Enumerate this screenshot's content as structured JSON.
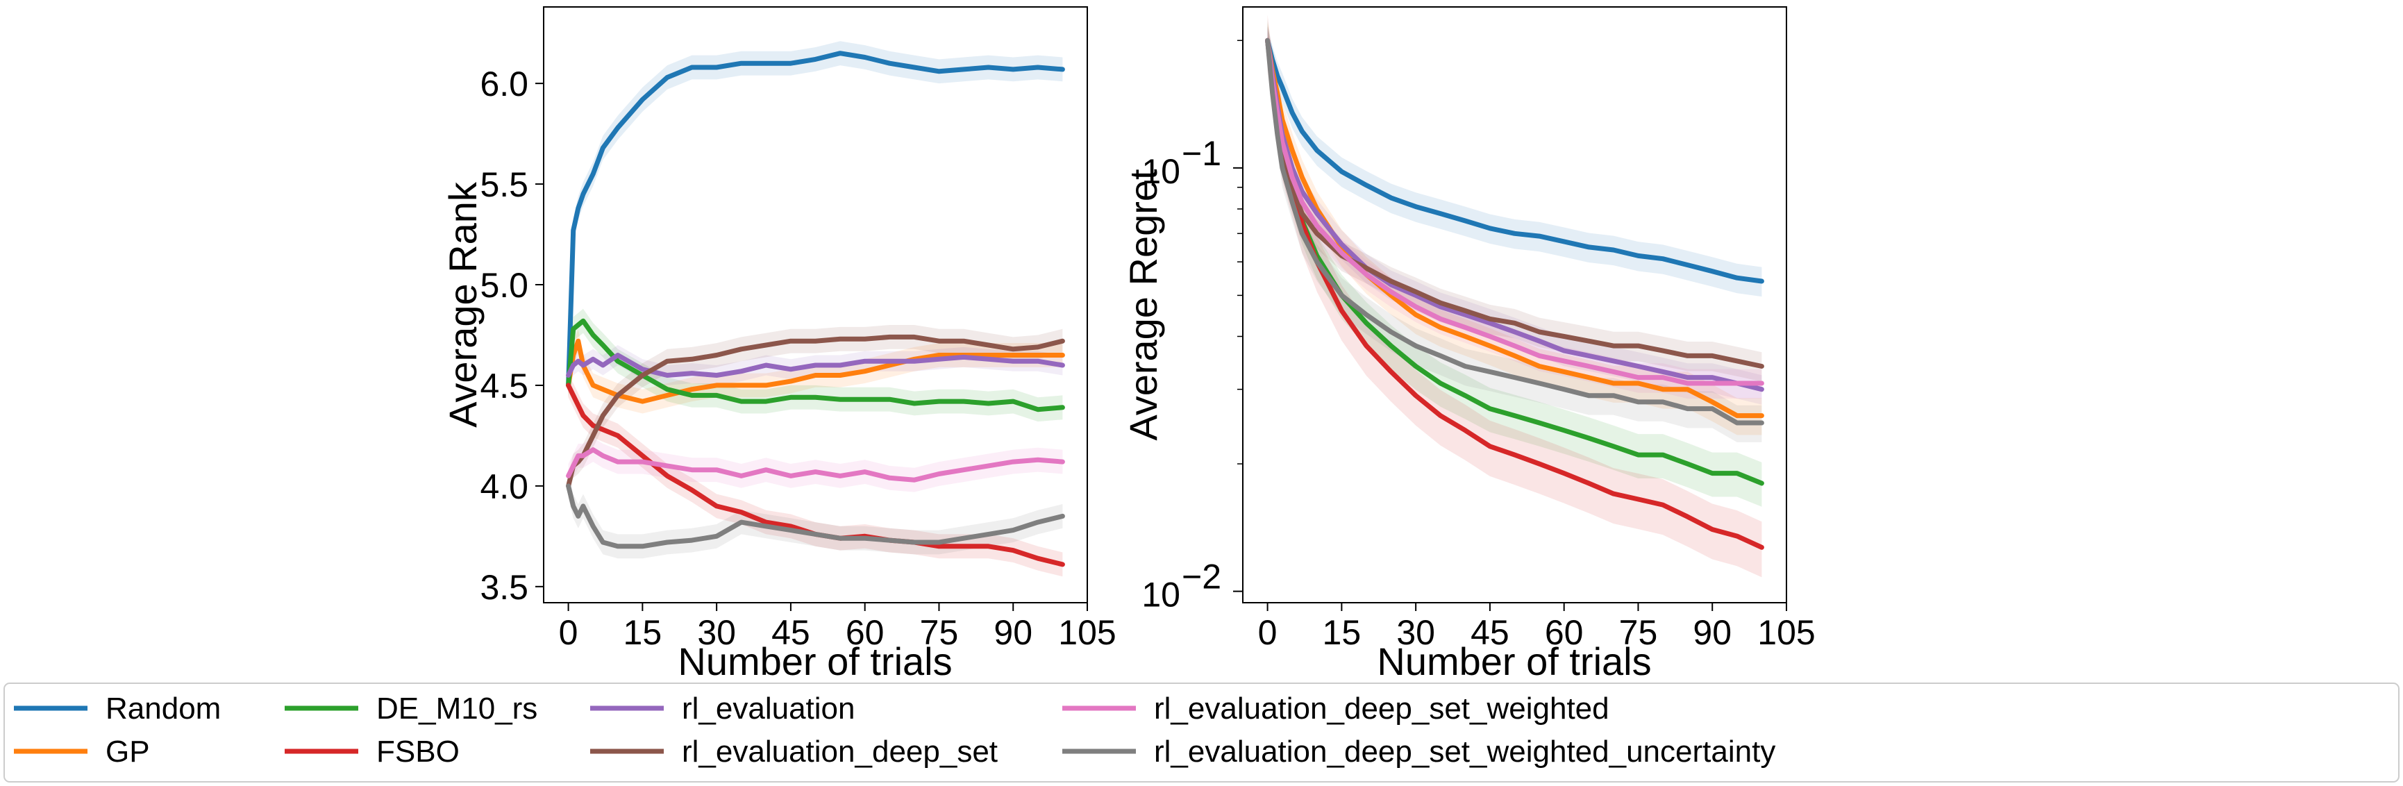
{
  "colors": {
    "Random": "#1f77b4",
    "GP": "#ff7f0e",
    "DE_M10_rs": "#2ca02c",
    "FSBO": "#d62728",
    "rl_evaluation": "#9467bd",
    "rl_evaluation_deep_set": "#8c564b",
    "rl_evaluation_deep_set_weighted": "#e377c2",
    "rl_evaluation_deep_set_weighted_uncertainty": "#7f7f7f"
  },
  "legend": {
    "entries": [
      "Random",
      "GP",
      "DE_M10_rs",
      "FSBO",
      "rl_evaluation",
      "rl_evaluation_deep_set",
      "rl_evaluation_deep_set_weighted",
      "rl_evaluation_deep_set_weighted_uncertainty"
    ],
    "placement": "bottom-center"
  },
  "chart_data": [
    {
      "type": "line",
      "xlabel": "Number of trials",
      "ylabel": "Average Rank",
      "xlim": [
        -5,
        105
      ],
      "ylim": [
        3.42,
        6.38
      ],
      "xticks": [
        0,
        15,
        30,
        45,
        60,
        75,
        90,
        105
      ],
      "yticks": [
        3.5,
        4.0,
        4.5,
        5.0,
        5.5,
        6.0
      ],
      "ytick_labels": [
        "3.5",
        "4.0",
        "4.5",
        "5.0",
        "5.5",
        "6.0"
      ],
      "grid": false,
      "series": [
        {
          "name": "Random",
          "x": [
            0,
            1,
            2,
            3,
            5,
            7,
            10,
            15,
            20,
            25,
            30,
            35,
            40,
            45,
            50,
            55,
            60,
            65,
            70,
            75,
            80,
            85,
            90,
            95,
            100
          ],
          "y": [
            4.5,
            5.27,
            5.38,
            5.45,
            5.55,
            5.68,
            5.78,
            5.92,
            6.03,
            6.08,
            6.08,
            6.1,
            6.1,
            6.1,
            6.12,
            6.15,
            6.13,
            6.1,
            6.08,
            6.06,
            6.07,
            6.08,
            6.07,
            6.08,
            6.07
          ],
          "band": 0.06
        },
        {
          "name": "GP",
          "x": [
            0,
            1,
            2,
            3,
            5,
            7,
            10,
            15,
            20,
            25,
            30,
            35,
            40,
            45,
            50,
            55,
            60,
            65,
            70,
            75,
            80,
            85,
            90,
            95,
            100
          ],
          "y": [
            4.5,
            4.65,
            4.72,
            4.6,
            4.5,
            4.48,
            4.45,
            4.42,
            4.45,
            4.48,
            4.5,
            4.5,
            4.5,
            4.52,
            4.55,
            4.55,
            4.57,
            4.6,
            4.63,
            4.65,
            4.65,
            4.65,
            4.65,
            4.65,
            4.65
          ],
          "band": 0.06
        },
        {
          "name": "DE_M10_rs",
          "x": [
            0,
            1,
            2,
            3,
            5,
            7,
            10,
            15,
            20,
            25,
            30,
            35,
            40,
            45,
            50,
            55,
            60,
            65,
            70,
            75,
            80,
            85,
            90,
            95,
            100
          ],
          "y": [
            4.5,
            4.78,
            4.8,
            4.82,
            4.75,
            4.7,
            4.62,
            4.55,
            4.48,
            4.45,
            4.45,
            4.42,
            4.42,
            4.44,
            4.44,
            4.43,
            4.43,
            4.43,
            4.41,
            4.42,
            4.42,
            4.41,
            4.42,
            4.38,
            4.39
          ],
          "band": 0.06
        },
        {
          "name": "FSBO",
          "x": [
            0,
            1,
            2,
            3,
            5,
            7,
            10,
            15,
            20,
            25,
            30,
            35,
            40,
            45,
            50,
            55,
            60,
            65,
            70,
            75,
            80,
            85,
            90,
            95,
            100
          ],
          "y": [
            4.5,
            4.45,
            4.4,
            4.35,
            4.3,
            4.28,
            4.25,
            4.15,
            4.05,
            3.98,
            3.9,
            3.87,
            3.82,
            3.8,
            3.76,
            3.74,
            3.75,
            3.73,
            3.72,
            3.7,
            3.7,
            3.7,
            3.68,
            3.64,
            3.61
          ],
          "band": 0.06
        },
        {
          "name": "rl_evaluation",
          "x": [
            0,
            1,
            2,
            3,
            5,
            7,
            10,
            15,
            20,
            25,
            30,
            35,
            40,
            45,
            50,
            55,
            60,
            65,
            70,
            75,
            80,
            85,
            90,
            95,
            100
          ],
          "y": [
            4.55,
            4.6,
            4.62,
            4.6,
            4.63,
            4.6,
            4.65,
            4.58,
            4.55,
            4.56,
            4.55,
            4.57,
            4.6,
            4.58,
            4.6,
            4.6,
            4.62,
            4.62,
            4.62,
            4.63,
            4.64,
            4.63,
            4.62,
            4.62,
            4.6
          ],
          "band": 0.05
        },
        {
          "name": "rl_evaluation_deep_set",
          "x": [
            0,
            1,
            2,
            3,
            5,
            7,
            10,
            15,
            20,
            25,
            30,
            35,
            40,
            45,
            50,
            55,
            60,
            65,
            70,
            75,
            80,
            85,
            90,
            95,
            100
          ],
          "y": [
            4.0,
            4.1,
            4.12,
            4.15,
            4.25,
            4.35,
            4.45,
            4.55,
            4.62,
            4.63,
            4.65,
            4.68,
            4.7,
            4.72,
            4.72,
            4.73,
            4.73,
            4.74,
            4.74,
            4.72,
            4.72,
            4.7,
            4.68,
            4.69,
            4.72
          ],
          "band": 0.06
        },
        {
          "name": "rl_evaluation_deep_set_weighted",
          "x": [
            0,
            1,
            2,
            3,
            5,
            7,
            10,
            15,
            20,
            25,
            30,
            35,
            40,
            45,
            50,
            55,
            60,
            65,
            70,
            75,
            80,
            85,
            90,
            95,
            100
          ],
          "y": [
            4.05,
            4.1,
            4.15,
            4.15,
            4.18,
            4.15,
            4.12,
            4.12,
            4.1,
            4.08,
            4.08,
            4.05,
            4.08,
            4.05,
            4.07,
            4.05,
            4.07,
            4.04,
            4.03,
            4.06,
            4.08,
            4.1,
            4.12,
            4.13,
            4.12
          ],
          "band": 0.06
        },
        {
          "name": "rl_evaluation_deep_set_weighted_uncertainty",
          "x": [
            0,
            1,
            2,
            3,
            5,
            7,
            10,
            15,
            20,
            25,
            30,
            35,
            40,
            45,
            50,
            55,
            60,
            65,
            70,
            75,
            80,
            85,
            90,
            95,
            100
          ],
          "y": [
            4.0,
            3.9,
            3.85,
            3.9,
            3.8,
            3.72,
            3.7,
            3.7,
            3.72,
            3.73,
            3.75,
            3.82,
            3.8,
            3.78,
            3.76,
            3.74,
            3.74,
            3.73,
            3.72,
            3.72,
            3.74,
            3.76,
            3.78,
            3.82,
            3.85
          ],
          "band": 0.06
        }
      ]
    },
    {
      "type": "line",
      "xlabel": "Number of trials",
      "ylabel": "Average Regret",
      "yscale": "log",
      "xlim": [
        -5,
        105
      ],
      "ylim": [
        0.0094,
        0.24
      ],
      "xticks": [
        0,
        15,
        30,
        45,
        60,
        75,
        90,
        105
      ],
      "yticks": [
        0.01,
        0.1
      ],
      "ytick_base": "10",
      "ytick_exponents": [
        "−2",
        "−1"
      ],
      "grid": false,
      "series": [
        {
          "name": "Random",
          "x": [
            0,
            1,
            2,
            3,
            5,
            7,
            10,
            15,
            20,
            25,
            30,
            35,
            40,
            45,
            50,
            55,
            60,
            65,
            70,
            75,
            80,
            85,
            90,
            95,
            100
          ],
          "y": [
            0.2,
            0.18,
            0.165,
            0.155,
            0.135,
            0.122,
            0.11,
            0.098,
            0.091,
            0.085,
            0.081,
            0.078,
            0.075,
            0.072,
            0.07,
            0.069,
            0.067,
            0.065,
            0.064,
            0.062,
            0.061,
            0.059,
            0.057,
            0.055,
            0.054
          ],
          "band": 0.08
        },
        {
          "name": "GP",
          "x": [
            0,
            1,
            2,
            3,
            5,
            7,
            10,
            15,
            20,
            25,
            30,
            35,
            40,
            45,
            50,
            55,
            60,
            65,
            70,
            75,
            80,
            85,
            90,
            95,
            100
          ],
          "y": [
            0.2,
            0.17,
            0.15,
            0.13,
            0.11,
            0.095,
            0.08,
            0.065,
            0.056,
            0.05,
            0.045,
            0.042,
            0.04,
            0.038,
            0.036,
            0.034,
            0.033,
            0.032,
            0.031,
            0.031,
            0.03,
            0.03,
            0.028,
            0.026,
            0.026
          ],
          "band": 0.1
        },
        {
          "name": "DE_M10_rs",
          "x": [
            0,
            1,
            2,
            3,
            5,
            7,
            10,
            15,
            20,
            25,
            30,
            35,
            40,
            45,
            50,
            55,
            60,
            65,
            70,
            75,
            80,
            85,
            90,
            95,
            100
          ],
          "y": [
            0.2,
            0.16,
            0.13,
            0.11,
            0.09,
            0.075,
            0.062,
            0.05,
            0.043,
            0.038,
            0.034,
            0.031,
            0.029,
            0.027,
            0.026,
            0.025,
            0.024,
            0.023,
            0.022,
            0.021,
            0.021,
            0.02,
            0.019,
            0.019,
            0.018
          ],
          "band": 0.12
        },
        {
          "name": "FSBO",
          "x": [
            0,
            1,
            2,
            3,
            5,
            7,
            10,
            15,
            20,
            25,
            30,
            35,
            40,
            45,
            50,
            55,
            60,
            65,
            70,
            75,
            80,
            85,
            90,
            95,
            100
          ],
          "y": [
            0.2,
            0.16,
            0.13,
            0.11,
            0.09,
            0.074,
            0.06,
            0.046,
            0.038,
            0.033,
            0.029,
            0.026,
            0.024,
            0.022,
            0.021,
            0.02,
            0.019,
            0.018,
            0.017,
            0.0165,
            0.016,
            0.015,
            0.014,
            0.0135,
            0.0127
          ],
          "band": 0.15
        },
        {
          "name": "rl_evaluation",
          "x": [
            0,
            1,
            2,
            3,
            5,
            7,
            10,
            15,
            20,
            25,
            30,
            35,
            40,
            45,
            50,
            55,
            60,
            65,
            70,
            75,
            80,
            85,
            90,
            95,
            100
          ],
          "y": [
            0.2,
            0.165,
            0.14,
            0.12,
            0.1,
            0.088,
            0.078,
            0.066,
            0.058,
            0.053,
            0.05,
            0.047,
            0.045,
            0.043,
            0.041,
            0.039,
            0.037,
            0.036,
            0.035,
            0.034,
            0.033,
            0.032,
            0.032,
            0.031,
            0.03
          ],
          "band": 0.08
        },
        {
          "name": "rl_evaluation_deep_set",
          "x": [
            0,
            1,
            2,
            3,
            5,
            7,
            10,
            15,
            20,
            25,
            30,
            35,
            40,
            45,
            50,
            55,
            60,
            65,
            70,
            75,
            80,
            85,
            90,
            95,
            100
          ],
          "y": [
            0.2,
            0.155,
            0.13,
            0.11,
            0.09,
            0.078,
            0.07,
            0.062,
            0.058,
            0.054,
            0.051,
            0.048,
            0.046,
            0.044,
            0.043,
            0.041,
            0.04,
            0.039,
            0.038,
            0.038,
            0.037,
            0.036,
            0.036,
            0.035,
            0.034
          ],
          "band": 0.08
        },
        {
          "name": "rl_evaluation_deep_set_weighted",
          "x": [
            0,
            1,
            2,
            3,
            5,
            7,
            10,
            15,
            20,
            25,
            30,
            35,
            40,
            45,
            50,
            55,
            60,
            65,
            70,
            75,
            80,
            85,
            90,
            95,
            100
          ],
          "y": [
            0.2,
            0.16,
            0.135,
            0.115,
            0.095,
            0.083,
            0.073,
            0.063,
            0.056,
            0.051,
            0.047,
            0.044,
            0.042,
            0.04,
            0.038,
            0.036,
            0.035,
            0.034,
            0.033,
            0.032,
            0.032,
            0.031,
            0.031,
            0.031,
            0.031
          ],
          "band": 0.08
        },
        {
          "name": "rl_evaluation_deep_set_weighted_uncertainty",
          "x": [
            0,
            1,
            2,
            3,
            5,
            7,
            10,
            15,
            20,
            25,
            30,
            35,
            40,
            45,
            50,
            55,
            60,
            65,
            70,
            75,
            80,
            85,
            90,
            95,
            100
          ],
          "y": [
            0.2,
            0.15,
            0.12,
            0.1,
            0.083,
            0.07,
            0.06,
            0.05,
            0.045,
            0.041,
            0.038,
            0.036,
            0.034,
            0.033,
            0.032,
            0.031,
            0.03,
            0.029,
            0.029,
            0.028,
            0.028,
            0.027,
            0.027,
            0.025,
            0.025
          ],
          "band": 0.1
        }
      ]
    }
  ]
}
